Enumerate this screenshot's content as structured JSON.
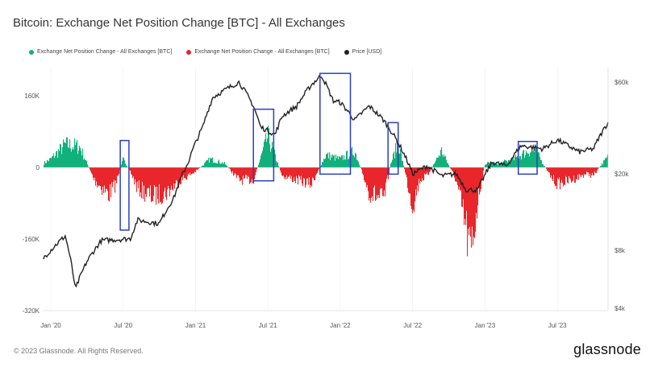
{
  "title": "Bitcoin: Exchange Net Position Change [BTC] - All Exchanges",
  "legend": [
    {
      "label": "Exchange Net Position Change - All Exchanges [BTC]",
      "color": "#12b07a"
    },
    {
      "label": "Exchange Net Position Change - All Exchanges [BTC]",
      "color": "#e8262b"
    },
    {
      "label": "Price [USD]",
      "color": "#222222"
    }
  ],
  "footer": "© 2023 Glassnode. All Rights Reserved.",
  "brand": "glassnode",
  "chart_data": {
    "type": "bar+line",
    "title": "Bitcoin: Exchange Net Position Change [BTC] - All Exchanges",
    "x_range": [
      2019.95,
      2023.85
    ],
    "x_ticks": [
      {
        "label": "Jan '20",
        "t": 2020.0
      },
      {
        "label": "Jul '20",
        "t": 2020.5
      },
      {
        "label": "Jan '21",
        "t": 2021.0
      },
      {
        "label": "Jul '21",
        "t": 2021.5
      },
      {
        "label": "Jan '22",
        "t": 2022.0
      },
      {
        "label": "Jul '22",
        "t": 2022.5
      },
      {
        "label": "Jan '23",
        "t": 2023.0
      },
      {
        "label": "Jul '23",
        "t": 2023.5
      }
    ],
    "y_left": {
      "range": [
        -320000,
        220000
      ],
      "ticks": [
        {
          "label": "160K",
          "v": 160000
        },
        {
          "label": "0",
          "v": 0
        },
        {
          "label": "-160K",
          "v": -160000
        },
        {
          "label": "-320K",
          "v": -320000
        }
      ]
    },
    "y_right": {
      "scale": "log",
      "range": [
        4000,
        80000
      ],
      "ticks": [
        {
          "label": "$60k",
          "v": 60000
        },
        {
          "label": "$20k",
          "v": 20000
        },
        {
          "label": "$8k",
          "v": 8000
        },
        {
          "label": "$4k",
          "v": 4000
        }
      ]
    },
    "colors": {
      "positive": "#12b07a",
      "negative": "#e8262b",
      "price": "#222222",
      "highlight": "#2b3fbf"
    },
    "net_position_keypoints": [
      [
        2019.95,
        10000
      ],
      [
        2020.0,
        20000
      ],
      [
        2020.1,
        55000
      ],
      [
        2020.2,
        50000
      ],
      [
        2020.3,
        -30000
      ],
      [
        2020.4,
        -65000
      ],
      [
        2020.45,
        -40000
      ],
      [
        2020.5,
        20000
      ],
      [
        2020.55,
        -10000
      ],
      [
        2020.6,
        -50000
      ],
      [
        2020.7,
        -70000
      ],
      [
        2020.8,
        -60000
      ],
      [
        2020.9,
        -30000
      ],
      [
        2021.0,
        -10000
      ],
      [
        2021.1,
        20000
      ],
      [
        2021.2,
        10000
      ],
      [
        2021.3,
        -30000
      ],
      [
        2021.4,
        -30000
      ],
      [
        2021.5,
        75000
      ],
      [
        2021.6,
        -20000
      ],
      [
        2021.7,
        -30000
      ],
      [
        2021.8,
        -40000
      ],
      [
        2021.9,
        30000
      ],
      [
        2022.0,
        20000
      ],
      [
        2022.1,
        40000
      ],
      [
        2022.2,
        -60000
      ],
      [
        2022.3,
        -80000
      ],
      [
        2022.35,
        10000
      ],
      [
        2022.4,
        60000
      ],
      [
        2022.5,
        -90000
      ],
      [
        2022.55,
        -30000
      ],
      [
        2022.6,
        -20000
      ],
      [
        2022.7,
        40000
      ],
      [
        2022.8,
        -30000
      ],
      [
        2022.87,
        -150000
      ],
      [
        2022.9,
        -220000
      ],
      [
        2022.95,
        -80000
      ],
      [
        2023.0,
        10000
      ],
      [
        2023.1,
        10000
      ],
      [
        2023.2,
        20000
      ],
      [
        2023.3,
        40000
      ],
      [
        2023.35,
        40000
      ],
      [
        2023.4,
        10000
      ],
      [
        2023.45,
        -20000
      ],
      [
        2023.5,
        -40000
      ],
      [
        2023.6,
        -30000
      ],
      [
        2023.7,
        -15000
      ],
      [
        2023.75,
        -20000
      ],
      [
        2023.8,
        5000
      ],
      [
        2023.85,
        25000
      ]
    ],
    "price_keypoints": [
      [
        2019.95,
        7300
      ],
      [
        2020.1,
        9500
      ],
      [
        2020.17,
        5000
      ],
      [
        2020.25,
        7000
      ],
      [
        2020.35,
        9000
      ],
      [
        2020.55,
        9200
      ],
      [
        2020.6,
        11500
      ],
      [
        2020.75,
        11000
      ],
      [
        2020.85,
        15000
      ],
      [
        2020.95,
        23000
      ],
      [
        2021.05,
        35000
      ],
      [
        2021.12,
        50000
      ],
      [
        2021.3,
        60000
      ],
      [
        2021.4,
        45000
      ],
      [
        2021.45,
        35000
      ],
      [
        2021.55,
        32000
      ],
      [
        2021.6,
        40000
      ],
      [
        2021.7,
        45000
      ],
      [
        2021.8,
        58000
      ],
      [
        2021.87,
        65000
      ],
      [
        2021.95,
        48000
      ],
      [
        2022.0,
        47000
      ],
      [
        2022.1,
        38000
      ],
      [
        2022.2,
        45000
      ],
      [
        2022.3,
        38000
      ],
      [
        2022.4,
        29000
      ],
      [
        2022.5,
        20000
      ],
      [
        2022.6,
        22000
      ],
      [
        2022.7,
        19500
      ],
      [
        2022.8,
        20000
      ],
      [
        2022.87,
        16500
      ],
      [
        2022.95,
        16500
      ],
      [
        2023.05,
        23000
      ],
      [
        2023.15,
        22000
      ],
      [
        2023.25,
        28000
      ],
      [
        2023.4,
        27000
      ],
      [
        2023.5,
        30000
      ],
      [
        2023.65,
        26000
      ],
      [
        2023.75,
        27000
      ],
      [
        2023.82,
        34000
      ],
      [
        2023.85,
        37000
      ]
    ],
    "highlight_boxes": [
      {
        "t0": 2020.48,
        "t1": 2020.54,
        "v_top": 60000,
        "v_bottom": -140000
      },
      {
        "t0": 2021.4,
        "t1": 2021.54,
        "v_top": 130000,
        "v_bottom": -30000
      },
      {
        "t0": 2021.86,
        "t1": 2022.07,
        "v_top": 210000,
        "v_bottom": -15000
      },
      {
        "t0": 2022.33,
        "t1": 2022.4,
        "v_top": 100000,
        "v_bottom": -15000
      },
      {
        "t0": 2023.23,
        "t1": 2023.36,
        "v_top": 58000,
        "v_bottom": -15000
      }
    ]
  }
}
